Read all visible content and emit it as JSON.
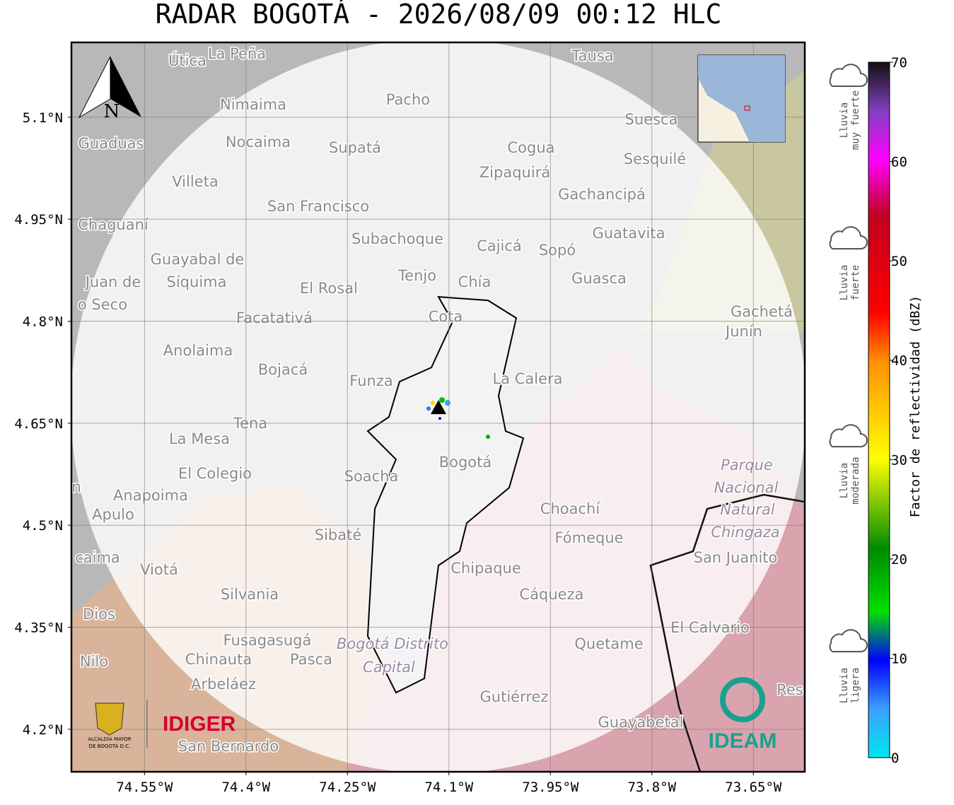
{
  "chart_data": {
    "type": "radar-map",
    "title": "RADAR BOGOTÁ - 2026/08/09 00:12 HLC",
    "xlim": [
      -74.658,
      -73.574
    ],
    "ylim": [
      4.1375,
      5.21
    ],
    "xticks": [
      {
        "value": -74.55,
        "label": "74.55°W"
      },
      {
        "value": -74.4,
        "label": "74.4°W"
      },
      {
        "value": -74.25,
        "label": "74.25°W"
      },
      {
        "value": -74.1,
        "label": "74.1°W"
      },
      {
        "value": -73.95,
        "label": "73.95°W"
      },
      {
        "value": -73.8,
        "label": "73.8°W"
      },
      {
        "value": -73.65,
        "label": "73.65°W"
      }
    ],
    "yticks": [
      {
        "value": 5.1,
        "label": "5.1°N"
      },
      {
        "value": 4.95,
        "label": "4.95°N"
      },
      {
        "value": 4.8,
        "label": "4.8°N"
      },
      {
        "value": 4.65,
        "label": "4.65°N"
      },
      {
        "value": 4.5,
        "label": "4.5°N"
      },
      {
        "value": 4.35,
        "label": "4.35°N"
      },
      {
        "value": 4.2,
        "label": "4.2°N"
      }
    ],
    "grid": true,
    "colorbar": {
      "label": "Factor de reflectividad (dBZ)",
      "lim": [
        0,
        70
      ],
      "ticks": [
        0,
        10,
        20,
        30,
        40,
        50,
        60,
        70
      ],
      "categories": [
        {
          "lines": [
            "Lluvia",
            "muy fuerte"
          ]
        },
        {
          "lines": [
            "Lluvia",
            "fuerte"
          ]
        },
        {
          "lines": [
            "Lluvia",
            "moderada"
          ]
        },
        {
          "lines": [
            "Lluvia",
            "ligera"
          ]
        }
      ]
    },
    "places": [
      "Útica",
      "La Peña",
      "Tausa",
      "Pacho",
      "Nimaima",
      "Guaduas",
      "Nocaima",
      "Supatá",
      "Cogua",
      "Suesca",
      "Sesquilé",
      "Zipaquirá",
      "Villeta",
      "Gachancipá",
      "San Francisco",
      "Chaguaní",
      "Guatavita",
      "Subachoque",
      "Cajicá",
      "Sopó",
      "Guayabal de",
      "Síquima",
      "Juan de",
      "o Seco",
      "Tenjo",
      "Chía",
      "El Rosal",
      "Guasca",
      "Facatativá",
      "Cota",
      "Gachetá",
      "Junín",
      "Anolaima",
      "Bojacá",
      "Funza",
      "La Calera",
      "Tena",
      "La Mesa",
      "Bogotá",
      "Soacha",
      "El Colegio",
      "Anapoima",
      "Apulo",
      "Choachí",
      "Fómeque",
      "San Juanito",
      "Sibaté",
      "caima",
      "Viotá",
      "Chipaque",
      "Silvania",
      "Cáqueza",
      "Dios",
      "El Calvario",
      "Fusagasugá",
      "Quetame",
      "Nilo",
      "Chinauta",
      "Pasca",
      "Arbeláez",
      "Gutiérrez",
      "Guayabetal",
      "San Bernardo",
      "n",
      "Res"
    ],
    "park_labels": [
      "Parque",
      "Nacional",
      "Natural",
      "Chingaza",
      "Bogotá Distrito",
      "Capital"
    ],
    "north": "N",
    "logos": {
      "left_line1": "ALCALDÍA MAYOR",
      "left_line2": "DE BOGOTÁ D.C.",
      "idiger": "IDIGER",
      "ideam": "IDEAM"
    }
  }
}
